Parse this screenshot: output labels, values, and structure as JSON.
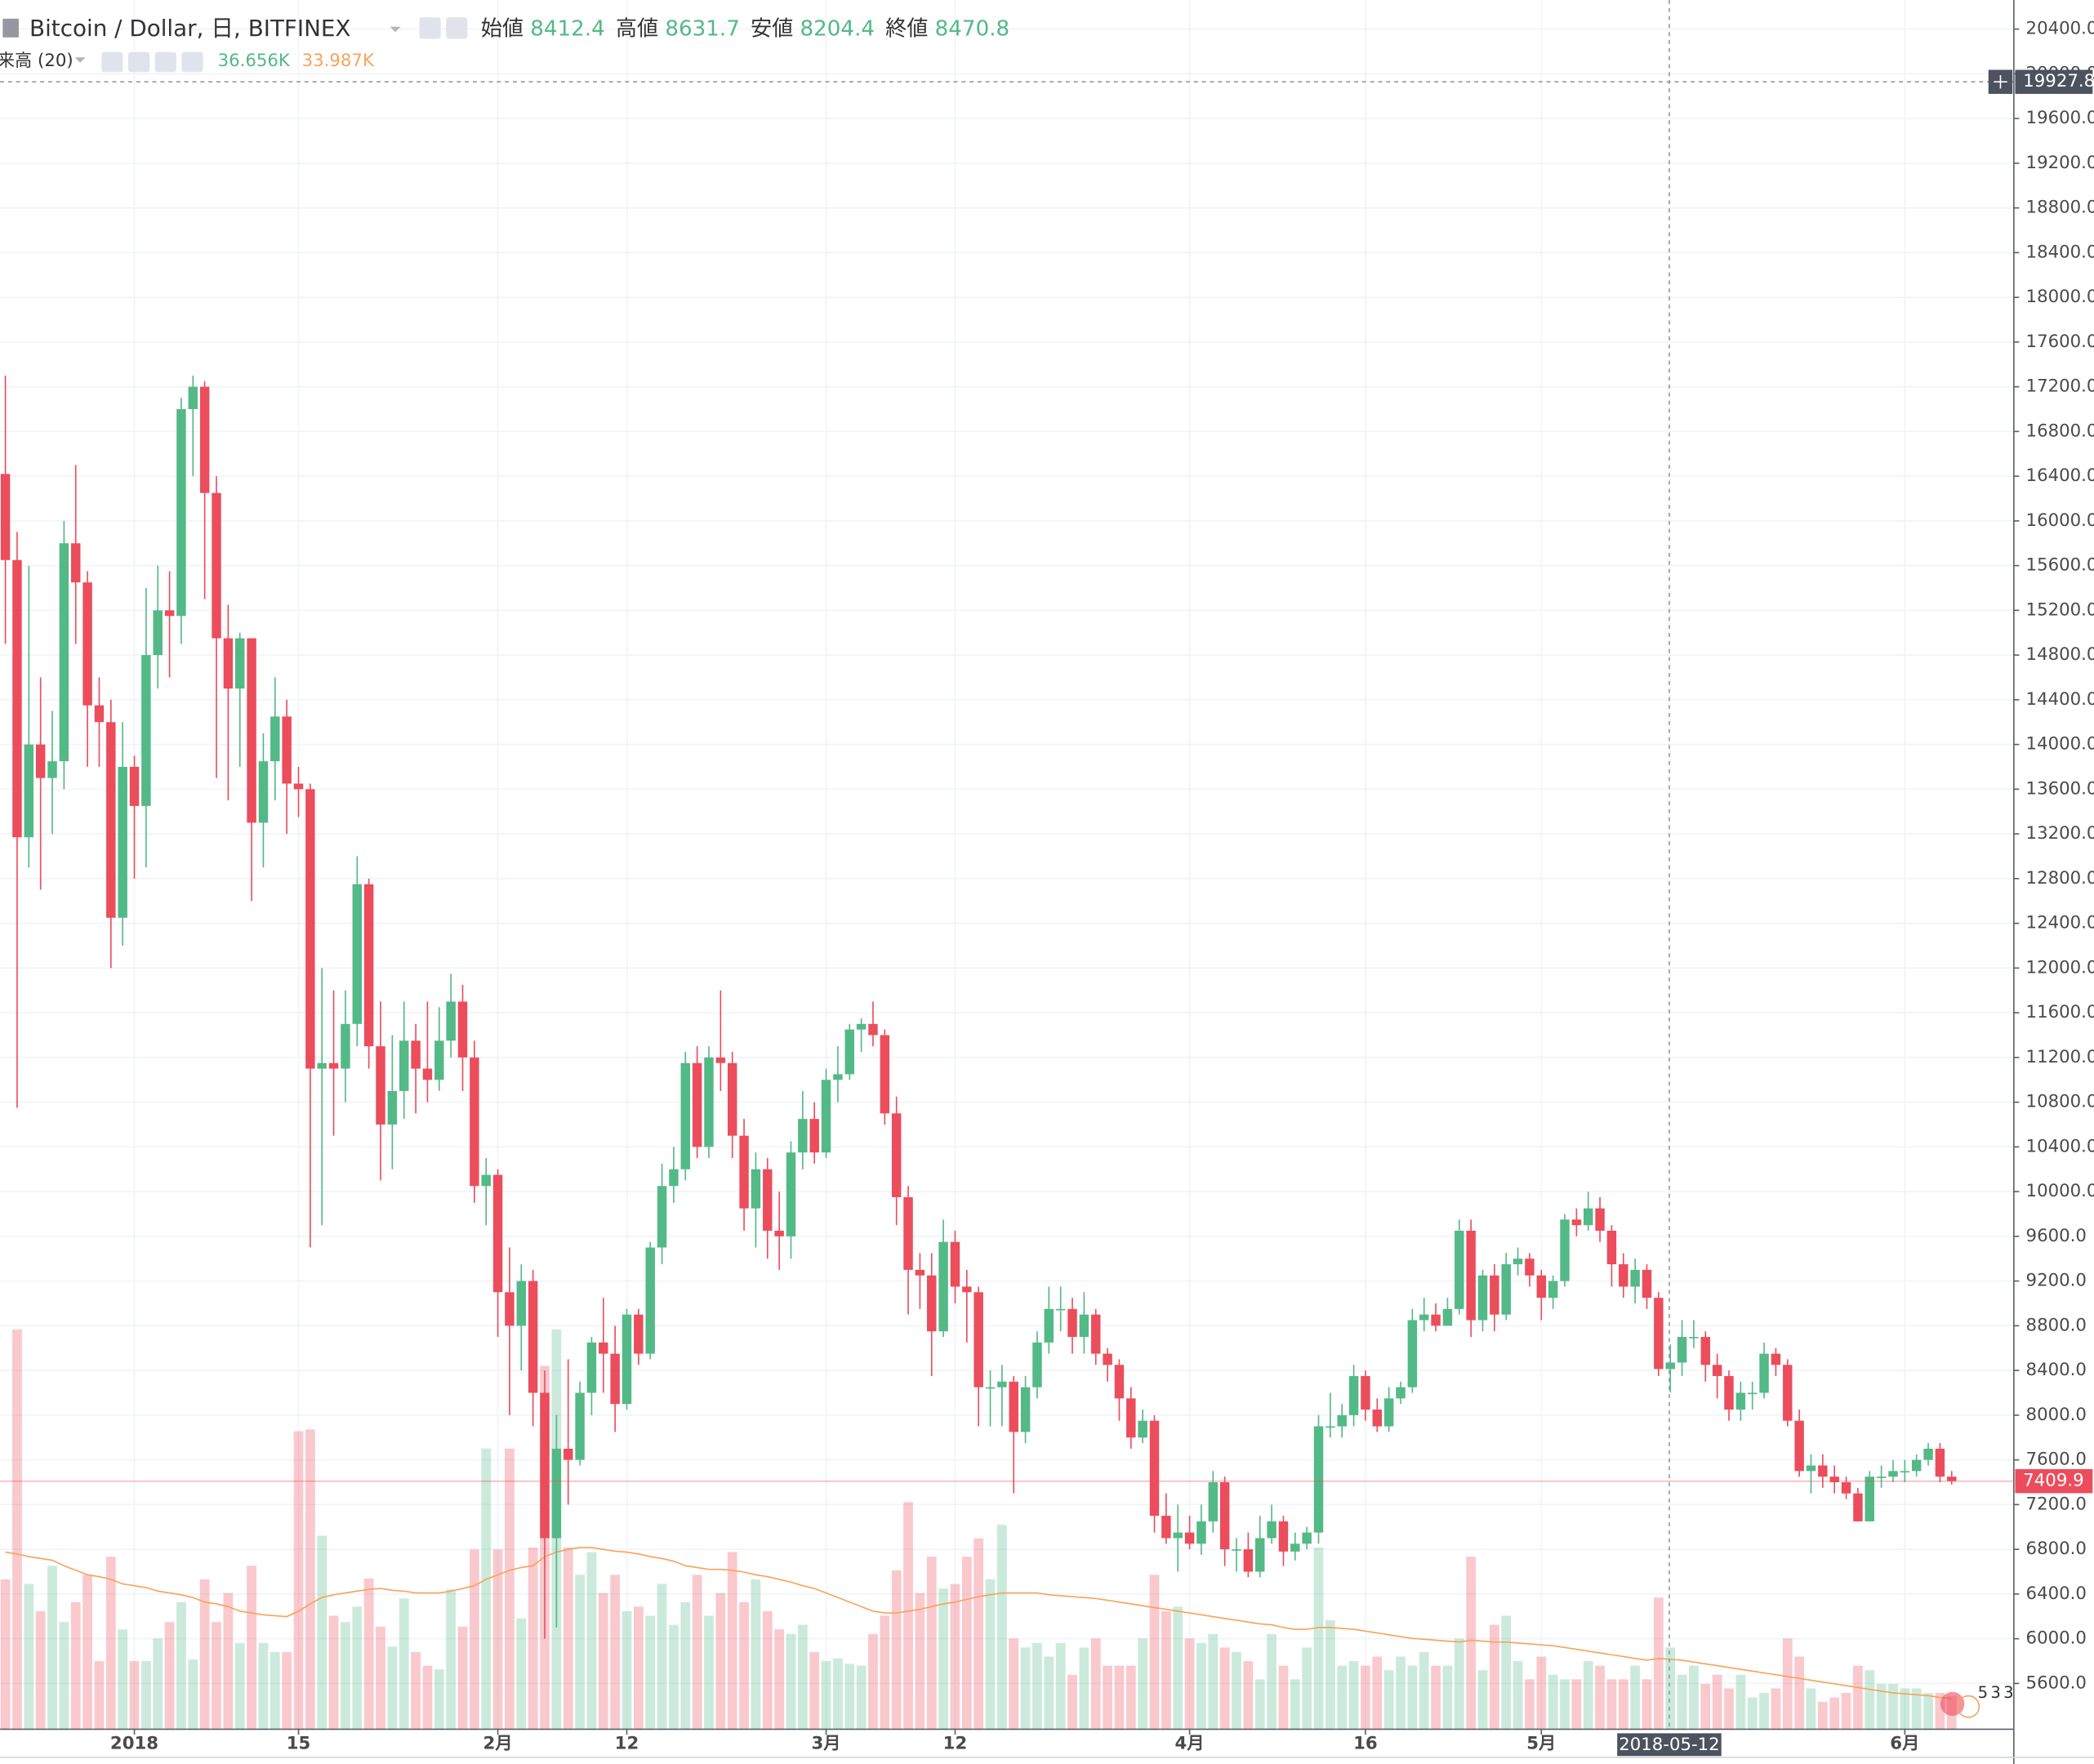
{
  "chart_data": {
    "type": "candlestick",
    "title": "Bitcoin / Dollar, 日, BITFINEX",
    "ohlc_labels": [
      "始値",
      "高値",
      "安値",
      "終値"
    ],
    "categories": [
      null,
      null,
      null,
      null,
      null,
      null,
      null,
      null,
      null,
      null,
      null,
      "2018",
      null,
      null,
      null,
      null,
      null,
      null,
      null,
      null,
      null,
      null,
      null,
      null,
      null,
      "15",
      null,
      null,
      null,
      null,
      null,
      null,
      null,
      null,
      null,
      null,
      null,
      null,
      null,
      null,
      null,
      null,
      "2月",
      null,
      null,
      null,
      null,
      null,
      null,
      null,
      null,
      null,
      null,
      "12",
      null,
      null,
      null,
      null,
      null,
      null,
      null,
      null,
      null,
      null,
      null,
      null,
      null,
      null,
      null,
      null,
      "3月",
      null,
      null,
      null,
      null,
      null,
      null,
      null,
      null,
      null,
      null,
      "12",
      null,
      null,
      null,
      null,
      null,
      null,
      null,
      null,
      null,
      null,
      null,
      null,
      null,
      null,
      null,
      null,
      null,
      null,
      null,
      "4月",
      null,
      null,
      null,
      null,
      null,
      null,
      null,
      null,
      null,
      null,
      null,
      null,
      null,
      null,
      "16",
      null,
      null,
      null,
      null,
      null,
      null,
      null,
      null,
      null,
      null,
      null,
      null,
      null,
      null,
      "5月",
      null,
      null,
      null,
      null,
      null,
      null,
      null,
      null,
      null,
      null,
      null,
      null,
      null,
      null,
      null,
      null,
      null,
      null,
      null,
      null,
      null,
      null,
      null,
      null,
      null,
      null,
      null,
      null,
      null,
      null,
      "6月",
      null,
      null,
      null,
      null
    ],
    "open": [
      16420,
      15650,
      13170,
      14000,
      13700,
      13850,
      15800,
      15450,
      14350,
      14200,
      12450,
      13800,
      13450,
      14800,
      15200,
      15150,
      17000,
      17200,
      16250,
      14950,
      14500,
      14950,
      13300,
      13850,
      14250,
      13650,
      13600,
      11100,
      11150,
      11100,
      11500,
      12750,
      11300,
      10600,
      10900,
      11350,
      11100,
      11000,
      11350,
      11700,
      11200,
      10050,
      10150,
      9100,
      8800,
      9200,
      8200,
      6900,
      7700,
      7600,
      8200,
      8650,
      8550,
      8100,
      8900,
      8550,
      9500,
      10050,
      10200,
      11150,
      10400,
      11200,
      11150,
      10500,
      9850,
      10200,
      9650,
      9600,
      10350,
      10650,
      10350,
      11000,
      11050,
      11450,
      11500,
      11400,
      10700,
      9950,
      9300,
      9250,
      8750,
      9550,
      9150,
      9100,
      8250,
      8250,
      8300,
      7850,
      8250,
      8650,
      8950,
      8950,
      8700,
      8900,
      8550,
      8450,
      8150,
      7800,
      7950,
      7100,
      6900,
      6950,
      6850,
      7050,
      7400,
      6800,
      6800,
      6600,
      6900,
      7050,
      6780,
      6850,
      6950,
      7900,
      7900,
      8000,
      8350,
      8050,
      7900,
      8150,
      8250,
      8850,
      8900,
      8800,
      8950,
      9650,
      8850,
      9250,
      8900,
      9350,
      9400,
      9250,
      9050,
      9200,
      9750,
      9700,
      9850,
      9650,
      9350,
      9150,
      9300,
      9050,
      8412.4,
      8470.8,
      8700,
      8700,
      8450,
      8350,
      8050,
      8200,
      8200,
      8550,
      8450,
      7950,
      7500,
      7550,
      7450,
      7400,
      7300,
      7050,
      7450,
      7450,
      7500,
      7500,
      7600,
      7700,
      7450
    ],
    "high": [
      17300,
      15900,
      15600,
      14600,
      14300,
      16000,
      16500,
      15550,
      14600,
      14400,
      14200,
      13900,
      15400,
      15600,
      15550,
      17100,
      17300,
      17250,
      16400,
      15250,
      15000,
      14950,
      14100,
      14600,
      14400,
      13800,
      13650,
      12000,
      11800,
      11800,
      13000,
      12800,
      11700,
      11400,
      11700,
      11500,
      11700,
      11650,
      11950,
      11850,
      11350,
      10300,
      10200,
      9500,
      9350,
      9300,
      8400,
      8000,
      8500,
      8300,
      8700,
      9050,
      8800,
      8950,
      8950,
      9550,
      10250,
      10400,
      11250,
      11300,
      11300,
      11800,
      11250,
      10650,
      10350,
      10300,
      10000,
      10450,
      10900,
      10800,
      11100,
      11300,
      11500,
      11550,
      11700,
      11450,
      10850,
      10050,
      9450,
      9450,
      9750,
      9650,
      9300,
      9150,
      8400,
      8450,
      8350,
      8350,
      8750,
      9150,
      9150,
      9050,
      9100,
      8950,
      8600,
      8500,
      8250,
      8050,
      8000,
      7300,
      7200,
      7100,
      7200,
      7500,
      7450,
      6900,
      6950,
      7100,
      7200,
      7100,
      6950,
      7000,
      8000,
      8200,
      8100,
      8450,
      8400,
      8150,
      8250,
      8300,
      8950,
      9050,
      9000,
      9050,
      9750,
      9750,
      9300,
      9350,
      9450,
      9500,
      9450,
      9300,
      9250,
      9800,
      9850,
      10000,
      9950,
      9700,
      9450,
      9400,
      9350,
      9100,
      8631.7,
      8850,
      8850,
      8750,
      8550,
      8400,
      8300,
      8300,
      8650,
      8600,
      8500,
      8050,
      7650,
      7650,
      7550,
      7450,
      7350,
      7500,
      7550,
      7600,
      7600,
      7650,
      7750,
      7750,
      7500
    ],
    "low": [
      14900,
      10750,
      12900,
      12700,
      13200,
      13600,
      14900,
      13800,
      13800,
      12000,
      12200,
      12800,
      12900,
      14500,
      14600,
      14900,
      16400,
      15300,
      13700,
      13500,
      13800,
      12600,
      12900,
      13500,
      13200,
      13350,
      9500,
      9700,
      10500,
      10800,
      11300,
      11100,
      10100,
      10200,
      10650,
      10700,
      10800,
      10900,
      11200,
      10900,
      9900,
      9700,
      8700,
      8000,
      8400,
      7900,
      6000,
      6100,
      7200,
      7550,
      8000,
      8200,
      7850,
      8050,
      8450,
      8500,
      9350,
      9900,
      10100,
      10300,
      10300,
      10900,
      10300,
      9650,
      9500,
      9400,
      9300,
      9400,
      10200,
      10250,
      10300,
      10800,
      11000,
      11250,
      11300,
      10600,
      9700,
      8900,
      8950,
      8350,
      8700,
      9000,
      8650,
      7900,
      7900,
      7900,
      7300,
      7750,
      8150,
      8550,
      8750,
      8550,
      8550,
      8450,
      8300,
      7950,
      7700,
      7750,
      6950,
      6850,
      6600,
      6800,
      6750,
      6950,
      6650,
      6600,
      6550,
      6550,
      6850,
      6650,
      6700,
      6800,
      6850,
      7800,
      7800,
      7900,
      7950,
      7850,
      7850,
      8100,
      8200,
      8750,
      8750,
      8800,
      8900,
      8700,
      8750,
      8750,
      8850,
      9250,
      9150,
      8850,
      8950,
      9150,
      9600,
      9650,
      9550,
      9150,
      9050,
      9000,
      8950,
      8350,
      8204.4,
      8350,
      8600,
      8300,
      8150,
      7950,
      7950,
      8050,
      8150,
      8350,
      7900,
      7450,
      7300,
      7350,
      7300,
      7250,
      7050,
      7050,
      7350,
      7400,
      7400,
      7450,
      7550,
      7400,
      7380
    ],
    "close": [
      15650,
      13170,
      14000,
      13700,
      13850,
      15800,
      15450,
      14350,
      14200,
      12450,
      13800,
      13450,
      14800,
      15200,
      15150,
      17000,
      17200,
      16250,
      14950,
      14500,
      14950,
      13300,
      13850,
      14250,
      13650,
      13600,
      11100,
      11150,
      11100,
      11500,
      12750,
      11300,
      10600,
      10900,
      11350,
      11100,
      11000,
      11350,
      11700,
      11200,
      10050,
      10150,
      9100,
      8800,
      9200,
      8200,
      6900,
      7700,
      7600,
      8200,
      8650,
      8550,
      8100,
      8900,
      8550,
      9500,
      10050,
      10200,
      11150,
      10400,
      11200,
      11150,
      10500,
      9850,
      10200,
      9650,
      9600,
      10350,
      10650,
      10350,
      11000,
      11050,
      11450,
      11500,
      11400,
      10700,
      9950,
      9300,
      9250,
      8750,
      9550,
      9150,
      9100,
      8250,
      8250,
      8300,
      7850,
      8250,
      8650,
      8950,
      8950,
      8700,
      8900,
      8550,
      8450,
      8150,
      7800,
      7950,
      7100,
      6900,
      6950,
      6850,
      7050,
      7400,
      6800,
      6800,
      6600,
      6900,
      7050,
      6780,
      6850,
      6950,
      7900,
      7900,
      8000,
      8350,
      8050,
      7900,
      8150,
      8250,
      8850,
      8900,
      8800,
      8950,
      9650,
      8850,
      9250,
      8900,
      9350,
      9400,
      9250,
      9050,
      9200,
      9750,
      9700,
      9850,
      9650,
      9350,
      9150,
      9300,
      9050,
      8412.4,
      8470.8,
      8700,
      8700,
      8450,
      8350,
      8050,
      8200,
      8200,
      8550,
      8450,
      7950,
      7500,
      7550,
      7450,
      7400,
      7300,
      7050,
      7450,
      7450,
      7500,
      7500,
      7600,
      7700,
      7450,
      7409.9
    ],
    "up_color": "#53b987",
    "down_color": "#eb4d5c",
    "ylim": [
      5190,
      20660
    ],
    "yticks": [
      {
        "value": 5600,
        "label": "5600.0"
      },
      {
        "value": 6000,
        "label": "6000.0"
      },
      {
        "value": 6400,
        "label": "6400.0"
      },
      {
        "value": 6800,
        "label": "6800.0"
      },
      {
        "value": 7200,
        "label": "7200.0"
      },
      {
        "value": 7600,
        "label": "7600.0"
      },
      {
        "value": 8000,
        "label": "8000.0"
      },
      {
        "value": 8400,
        "label": "8400.0"
      },
      {
        "value": 8800,
        "label": "8800.0"
      },
      {
        "value": 9200,
        "label": "9200.0"
      },
      {
        "value": 9600,
        "label": "9600.0"
      },
      {
        "value": 10000,
        "label": "10000.0"
      },
      {
        "value": 10400,
        "label": "10400.0"
      },
      {
        "value": 10800,
        "label": "10800.0"
      },
      {
        "value": 11200,
        "label": "11200.0"
      },
      {
        "value": 11600,
        "label": "11600.0"
      },
      {
        "value": 12000,
        "label": "12000.0"
      },
      {
        "value": 12400,
        "label": "12400.0"
      },
      {
        "value": 12800,
        "label": "12800.0"
      },
      {
        "value": 13200,
        "label": "13200.0"
      },
      {
        "value": 13600,
        "label": "13600.0"
      },
      {
        "value": 14000,
        "label": "14000.0"
      },
      {
        "value": 14400,
        "label": "14400.0"
      },
      {
        "value": 14800,
        "label": "14800.0"
      },
      {
        "value": 15200,
        "label": "15200.0"
      },
      {
        "value": 15600,
        "label": "15600.0"
      },
      {
        "value": 16000,
        "label": "16000.0"
      },
      {
        "value": 16400,
        "label": "16400.0"
      },
      {
        "value": 16800,
        "label": "16800.0"
      },
      {
        "value": 17200,
        "label": "17200.0"
      },
      {
        "value": 17600,
        "label": "17600.0"
      },
      {
        "value": 18000,
        "label": "18000.0"
      },
      {
        "value": 18400,
        "label": "18400.0"
      },
      {
        "value": 18800,
        "label": "18800.0"
      },
      {
        "value": 19200,
        "label": "19200.0"
      },
      {
        "value": 19600,
        "label": "19600.0"
      },
      {
        "value": 20000,
        "label": "20000.0"
      },
      {
        "value": 20400,
        "label": "20400.0"
      }
    ],
    "grid": true,
    "volume": {
      "name": "来高 (20)",
      "values": [
        165,
        440,
        160,
        130,
        180,
        118,
        140,
        170,
        75,
        190,
        110,
        75,
        75,
        100,
        118,
        140,
        77,
        165,
        118,
        150,
        95,
        180,
        95,
        85,
        85,
        328,
        330,
        213,
        125,
        118,
        135,
        166,
        113,
        91,
        144,
        85,
        70,
        66,
        154,
        113,
        198,
        309,
        198,
        309,
        122,
        200,
        400,
        440,
        200,
        170,
        195,
        150,
        170,
        130,
        135,
        125,
        160,
        115,
        140,
        170,
        125,
        150,
        195,
        140,
        165,
        130,
        110,
        105,
        115,
        85,
        75,
        78,
        72,
        70,
        105,
        125,
        175,
        250,
        150,
        190,
        155,
        160,
        190,
        210,
        165,
        225,
        100,
        90,
        95,
        80,
        95,
        60,
        90,
        100,
        70,
        70,
        70,
        100,
        170,
        130,
        135,
        100,
        95,
        105,
        90,
        85,
        75,
        55,
        105,
        70,
        55,
        90,
        200,
        120,
        70,
        75,
        70,
        80,
        65,
        80,
        70,
        85,
        70,
        70,
        100,
        190,
        65,
        115,
        125,
        75,
        55,
        80,
        60,
        55,
        55,
        75,
        70,
        55,
        55,
        70,
        55,
        145,
        90,
        60,
        70,
        50,
        60,
        45,
        60,
        35,
        40,
        45,
        100,
        80,
        45,
        30,
        35,
        40,
        70,
        65,
        50,
        50,
        45,
        45,
        40,
        40,
        36.656
      ],
      "value_labels": {
        "166": "36.656K"
      },
      "ma": [
        195,
        193,
        190,
        188,
        186,
        180,
        175,
        170,
        168,
        165,
        160,
        158,
        156,
        152,
        150,
        148,
        145,
        140,
        138,
        135,
        130,
        128,
        126,
        125,
        124,
        130,
        138,
        145,
        148,
        150,
        152,
        154,
        155,
        153,
        152,
        150,
        150,
        150,
        152,
        155,
        158,
        165,
        170,
        175,
        178,
        180,
        190,
        195,
        198,
        200,
        200,
        198,
        196,
        195,
        193,
        190,
        188,
        185,
        180,
        178,
        176,
        176,
        175,
        173,
        170,
        168,
        165,
        162,
        158,
        155,
        150,
        145,
        140,
        135,
        130,
        128,
        128,
        130,
        132,
        135,
        138,
        140,
        143,
        146,
        148,
        150,
        150,
        150,
        150,
        148,
        147,
        146,
        145,
        144,
        142,
        140,
        138,
        136,
        134,
        132,
        130,
        128,
        126,
        124,
        122,
        120,
        118,
        116,
        115,
        112,
        110,
        110,
        112,
        112,
        111,
        110,
        108,
        106,
        104,
        102,
        100,
        99,
        98,
        97,
        96,
        98,
        97,
        96,
        96,
        95,
        94,
        93,
        92,
        90,
        88,
        86,
        84,
        82,
        80,
        78,
        76,
        78,
        77,
        76,
        74,
        72,
        70,
        68,
        66,
        64,
        62,
        60,
        58,
        56,
        54,
        52,
        50,
        48,
        46,
        44,
        42,
        40,
        39,
        38,
        37,
        35,
        33.987
      ],
      "ma_labels": {
        "166": "33.987K"
      },
      "ma_color": "#f7a35c",
      "vlim": [
        0,
        460
      ]
    },
    "crosshair": {
      "label": "2018-05-12",
      "price": 19927.8
    },
    "badge": "533"
  }
}
